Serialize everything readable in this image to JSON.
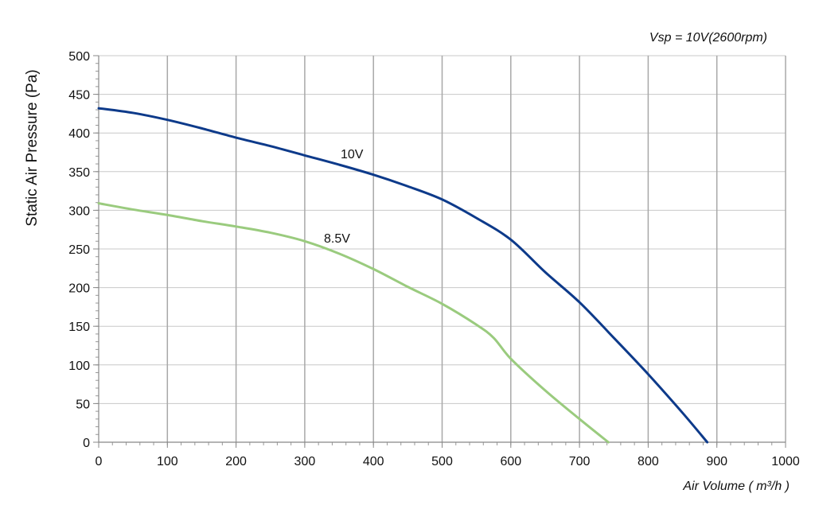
{
  "chart_data": {
    "type": "line",
    "annotation": "Vsp = 10V(2600rpm)",
    "xlabel": "Air Volume ( m³/h )",
    "ylabel": "Static Air Pressure  (Pa)",
    "xlim": [
      0,
      1000
    ],
    "ylim": [
      0,
      500
    ],
    "xticks": [
      0,
      100,
      200,
      300,
      400,
      500,
      600,
      700,
      800,
      900,
      1000
    ],
    "yticks": [
      0,
      50,
      100,
      150,
      200,
      250,
      300,
      350,
      400,
      450,
      500
    ],
    "grid": true,
    "series": [
      {
        "name": "10V",
        "color": "#0d3a8a",
        "x": [
          0,
          50,
          100,
          150,
          200,
          250,
          300,
          350,
          400,
          450,
          500,
          550,
          600,
          650,
          700,
          750,
          800,
          850,
          886
        ],
        "y": [
          432,
          426,
          417,
          406,
          394,
          383,
          371,
          359,
          346,
          331,
          314,
          290,
          262,
          220,
          181,
          135,
          88,
          38,
          0
        ]
      },
      {
        "name": "8.5V",
        "color": "#9acb7e",
        "x": [
          0,
          50,
          100,
          150,
          200,
          250,
          300,
          350,
          400,
          450,
          500,
          550,
          575,
          600,
          650,
          700,
          742
        ],
        "y": [
          309,
          301,
          294,
          286,
          279,
          271,
          260,
          244,
          224,
          201,
          179,
          152,
          135,
          108,
          67,
          30,
          0
        ]
      }
    ]
  }
}
